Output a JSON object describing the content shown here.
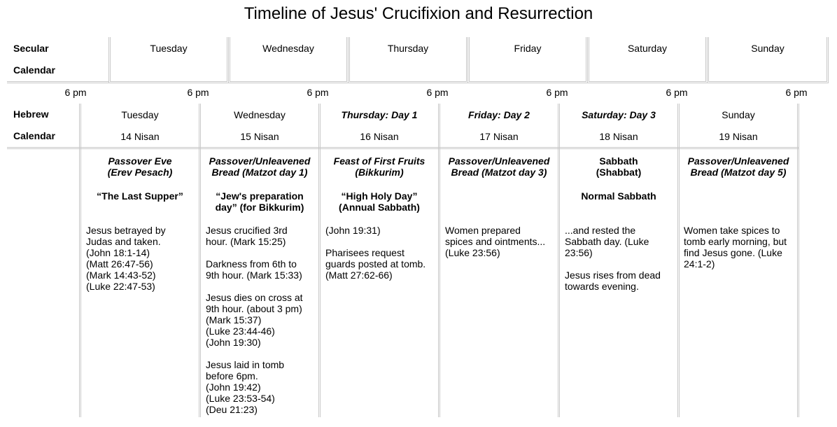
{
  "title": "Timeline of Jesus' Crucifixion and Resurrection",
  "secular": {
    "label_line1": "Secular",
    "label_line2": "Calendar",
    "days": [
      "Tuesday",
      "Wednesday",
      "Thursday",
      "Friday",
      "Saturday",
      "Sunday"
    ]
  },
  "six_pm": [
    "6 pm",
    "6 pm",
    "6 pm",
    "6 pm",
    "6 pm",
    "6 pm",
    "6 pm"
  ],
  "hebrew": {
    "label_line1": "Hebrew",
    "label_line2": "Calendar",
    "days": [
      {
        "day": "Tuesday",
        "date": "14 Nisan"
      },
      {
        "day": "Wednesday",
        "date": "15 Nisan"
      },
      {
        "day": "Thursday: Day 1",
        "date": "16 Nisan"
      },
      {
        "day": "Friday: Day 2",
        "date": "17 Nisan"
      },
      {
        "day": "Saturday: Day 3",
        "date": "18 Nisan"
      },
      {
        "day": "Sunday",
        "date": "19 Nisan"
      }
    ]
  },
  "events": [
    {
      "heading": "Passover Eve\n(Erev Pesach)",
      "subheading": "“The Last Supper”",
      "paragraphs": [
        "Jesus betrayed by\nJudas and taken.\n(John 18:1-14)\n(Matt 26:47-56)\n(Mark 14:43-52)\n(Luke 22:47-53)"
      ]
    },
    {
      "heading": "Passover/Unleavened\nBread (Matzot day 1)",
      "subheading": "“Jew's preparation\nday” (for Bikkurim)",
      "paragraphs": [
        "Jesus crucified 3rd\nhour. (Mark 15:25)",
        "Darkness from 6th to\n9th hour. (Mark 15:33)",
        "Jesus dies on cross at\n9th hour. (about 3 pm)\n(Mark 15:37)\n(Luke 23:44-46)\n(John 19:30)",
        "Jesus laid in tomb\nbefore 6pm.\n(John 19:42)\n(Luke 23:53-54)\n(Deu 21:23)"
      ]
    },
    {
      "heading": "Feast of First Fruits\n(Bikkurim)",
      "subheading": "“High Holy Day”\n(Annual Sabbath)",
      "paragraphs": [
        "(John 19:31)",
        "Pharisees request\nguards posted at tomb.\n(Matt 27:62-66)"
      ]
    },
    {
      "heading": "Passover/Unleavened\nBread (Matzot day 3)",
      "subheading": "",
      "paragraphs": [
        "Women prepared\nspices and ointments...\n(Luke 23:56)"
      ]
    },
    {
      "heading_bold": "Sabbath\n(Shabbat)",
      "subheading": "Normal Sabbath",
      "paragraphs": [
        "...and rested the\nSabbath day. (Luke\n23:56)",
        "Jesus rises from dead\ntowards evening."
      ]
    },
    {
      "heading": "Passover/Unleavened\nBread (Matzot day 5)",
      "subheading": "",
      "paragraphs": [
        "Women take spices to\ntomb early morning, but\nfind Jesus gone. (Luke\n24:1-2)"
      ]
    }
  ]
}
